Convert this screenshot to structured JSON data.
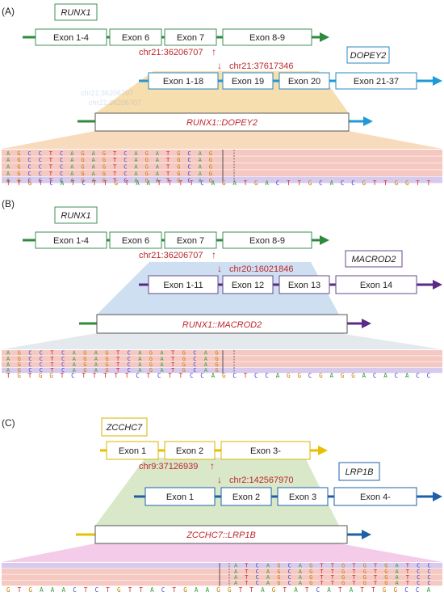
{
  "colors": {
    "green": "#2e8b3e",
    "green_box": "#3f8f5a",
    "blue": "#1f9ad6",
    "blue_box": "#2a88c0",
    "purple": "#5b2a86",
    "purple_box": "#6a4a8a",
    "yellow": "#e8c000",
    "yellow_box": "#d9b400",
    "dark_blue": "#1f5fa8",
    "red_text": "#c0282e",
    "orange_fan": "#f6cfa5",
    "blue_fan": "#c8dcf0",
    "green_fan": "#d4e6c3",
    "pink_fan": "#f2c2e4",
    "base_A": "#3a9d3a",
    "base_C": "#4444cc",
    "base_G": "#cc7a00",
    "base_T": "#cc2222"
  },
  "panels": [
    {
      "label": "(A)",
      "gene1": {
        "name": "RUNX1",
        "exons": [
          "Exon 1-4",
          "Exon 6",
          "Exon 7",
          "Exon 8-9"
        ]
      },
      "gene2": {
        "name": "DOPEY2",
        "exons": [
          "Exon 1-18",
          "Exon 19",
          "Exon 20",
          "Exon 21-37"
        ]
      },
      "breakpoint1": "chr21:36206707",
      "breakpoint2": "chr21:37617346",
      "fusion": "RUNX1::DOPEY2",
      "read_rows": [
        "AGCCTCAGAGTCAGATGCAG",
        "AGCCTCAGAGTCAGATGCAG",
        "AGCCTCAGAGTCAGATGCAG",
        "AGCCTCAGAGTCAGATGCAG",
        "AGCCTCAGAGTCAGATGCAG"
      ],
      "reference": "TTGTCATCTTGTAATTTTCAGATGACTTGCACCGTTGGTT"
    },
    {
      "label": "(B)",
      "gene1": {
        "name": "RUNX1",
        "exons": [
          "Exon 1-4",
          "Exon 6",
          "Exon 7",
          "Exon 8-9"
        ]
      },
      "gene2": {
        "name": "MACROD2",
        "exons": [
          "Exon 1-11",
          "Exon 12",
          "Exon 13",
          "Exon 14"
        ]
      },
      "breakpoint1": "chr21:36206707",
      "breakpoint2": "chr20:16021846",
      "fusion": "RUNX1::MACROD2",
      "read_rows": [
        "AGCCTCAGAGTCAGATGCAG",
        "AGCCTCAGAGTCAGATGCAG",
        "AGCCTCAGAGTCAGATGCAG",
        "AGCCTCAGAGTCAGATGCAG"
      ],
      "reference": "TGTGGTCTTTTTCTCTTCCAGCTCCAGGCGAGGACACACC"
    },
    {
      "label": "(C)",
      "gene1": {
        "name": "ZCCHC7",
        "exons": [
          "Exon 1",
          "Exon 2",
          "Exon 3-"
        ]
      },
      "gene2": {
        "name": "LRP1B",
        "exons": [
          "Exon 1",
          "Exon 2",
          "Exon 3",
          "Exon 4-"
        ]
      },
      "breakpoint1": "chr9:37126939",
      "breakpoint2": "chr2:142567970",
      "fusion": "ZCCHC7::LRP1B",
      "read_rows": [
        "ATCAGCAGTTGTGTGATCC",
        "ATCAGCAGTTGTGTGATCC",
        "ATCAGCAGTTGTGTGATCC",
        "ATCAGCAGTTGTGTGATCC"
      ],
      "reference": "GTGAAACTCTGTTACTGAAGGTTAGTATCATATTGGCCA"
    }
  ]
}
